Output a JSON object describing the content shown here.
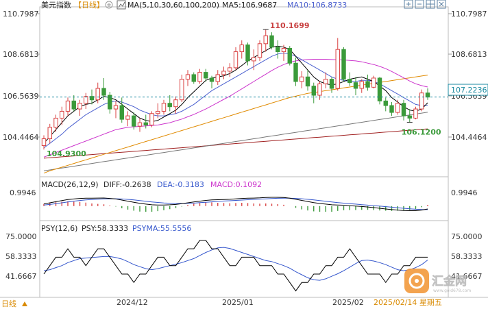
{
  "header": {
    "name": "美元指数",
    "period": "【日线】",
    "ma_label": "MA(5,10,30,60,100,200)",
    "ma5": "MA5:106.9687",
    "ma10": "MA10:106.8733"
  },
  "toolbar": {
    "icons": [
      "zoom-in-icon",
      "zoom-out-icon",
      "grid-icon",
      "close-icon"
    ]
  },
  "price_panel": {
    "y_ticks": [
      "110.7987",
      "108.6813",
      "106.5639",
      "104.4464"
    ],
    "current_price": "107.2236",
    "high_label": "110.1699",
    "low_label_left": "104.9300",
    "low_label_right": "106.1200"
  },
  "macd_panel": {
    "label": "MACD(26,12,9)",
    "diff": "DIFF:-0.2638",
    "dea": "DEA:-0.3183",
    "macd": "MACD:0.1092",
    "y_ticks": [
      "0.9946"
    ]
  },
  "psy_panel": {
    "label": "PSY(12,6)",
    "psy": "PSY:58.3333",
    "psyma": "PSYMA:55.5556",
    "y_ticks": [
      "75.0000",
      "58.3333",
      "41.6667"
    ]
  },
  "footer": {
    "period_button": "日线",
    "x_ticks": [
      "2024/12",
      "2025/01",
      "2025/02"
    ],
    "date": "2025/02/14 星期五"
  },
  "watermark": {
    "text": "汇金网",
    "sub": "www.gold678.com"
  },
  "colors": {
    "up": "#d94040",
    "down": "#3a9a3a",
    "ma5": "#000000",
    "ma10": "#4a5fcf",
    "ma30": "#cc33cc",
    "ma60": "#e08a00",
    "ma100": "#777777",
    "ma200": "#a02020",
    "current_line": "#1a8aa0"
  },
  "chart_data": {
    "type": "candlestick",
    "x_range_dates": [
      "2024-11-05",
      "2025-02-14"
    ],
    "ylim": [
      103.8,
      111.1
    ],
    "candles": [
      [
        105.1,
        105.55,
        104.93,
        105.4
      ],
      [
        105.4,
        106.05,
        105.2,
        105.9
      ],
      [
        105.9,
        106.45,
        105.7,
        106.3
      ],
      [
        106.3,
        106.8,
        106.0,
        106.6
      ],
      [
        106.6,
        107.2,
        106.4,
        107.05
      ],
      [
        107.05,
        107.3,
        106.6,
        106.7
      ],
      [
        106.7,
        107.1,
        106.4,
        106.95
      ],
      [
        106.95,
        107.4,
        106.7,
        107.25
      ],
      [
        107.25,
        107.55,
        106.9,
        107.1
      ],
      [
        107.1,
        107.85,
        106.95,
        107.6
      ],
      [
        107.6,
        108.05,
        107.1,
        107.3
      ],
      [
        107.3,
        107.45,
        106.5,
        106.7
      ],
      [
        106.7,
        107.05,
        106.3,
        106.85
      ],
      [
        106.85,
        107.2,
        106.1,
        106.25
      ],
      [
        106.25,
        106.6,
        105.95,
        106.4
      ],
      [
        106.4,
        106.55,
        105.8,
        105.95
      ],
      [
        105.95,
        106.3,
        105.7,
        106.1
      ],
      [
        106.1,
        106.45,
        105.85,
        106.0
      ],
      [
        106.0,
        106.6,
        105.9,
        106.5
      ],
      [
        106.5,
        106.95,
        106.3,
        106.6
      ],
      [
        106.6,
        107.1,
        106.45,
        106.95
      ],
      [
        106.95,
        107.3,
        106.6,
        106.8
      ],
      [
        106.8,
        107.25,
        106.5,
        107.1
      ],
      [
        107.1,
        108.2,
        107.0,
        108.0
      ],
      [
        108.0,
        108.4,
        107.7,
        108.2
      ],
      [
        108.2,
        108.3,
        107.8,
        107.9
      ],
      [
        107.9,
        108.45,
        107.8,
        108.3
      ],
      [
        108.3,
        108.45,
        107.9,
        108.05
      ],
      [
        108.05,
        108.15,
        107.6,
        107.9
      ],
      [
        107.9,
        108.4,
        107.75,
        108.2
      ],
      [
        108.2,
        108.55,
        108.0,
        108.35
      ],
      [
        108.35,
        108.7,
        108.1,
        108.5
      ],
      [
        108.5,
        109.4,
        108.4,
        109.2
      ],
      [
        109.2,
        109.7,
        108.9,
        109.5
      ],
      [
        109.5,
        109.6,
        108.6,
        108.8
      ],
      [
        108.8,
        109.3,
        108.4,
        108.95
      ],
      [
        108.95,
        109.7,
        108.8,
        109.55
      ],
      [
        109.55,
        110.17,
        109.2,
        109.9
      ],
      [
        109.9,
        110.05,
        109.3,
        109.4
      ],
      [
        109.4,
        109.7,
        108.9,
        109.2
      ],
      [
        109.2,
        109.5,
        108.8,
        109.35
      ],
      [
        109.35,
        109.45,
        108.6,
        108.7
      ],
      [
        108.7,
        108.95,
        107.7,
        107.9
      ],
      [
        107.9,
        108.35,
        107.6,
        108.1
      ],
      [
        108.1,
        108.4,
        107.5,
        107.7
      ],
      [
        107.7,
        107.85,
        106.95,
        107.3
      ],
      [
        107.3,
        107.9,
        107.1,
        107.8
      ],
      [
        107.8,
        108.3,
        107.6,
        108.0
      ],
      [
        108.0,
        108.1,
        107.4,
        107.6
      ],
      [
        107.6,
        109.8,
        107.5,
        109.3
      ],
      [
        109.3,
        109.4,
        107.9,
        108.0
      ],
      [
        108.0,
        108.3,
        107.7,
        107.85
      ],
      [
        107.85,
        108.1,
        107.3,
        107.6
      ],
      [
        107.6,
        108.0,
        107.4,
        107.9
      ],
      [
        107.9,
        108.2,
        107.5,
        107.65
      ],
      [
        107.65,
        108.15,
        107.6,
        108.05
      ],
      [
        108.05,
        108.1,
        106.9,
        107.05
      ],
      [
        107.05,
        107.2,
        106.6,
        106.85
      ],
      [
        106.85,
        107.0,
        106.4,
        106.55
      ],
      [
        106.55,
        107.1,
        106.45,
        106.95
      ],
      [
        106.95,
        107.1,
        106.2,
        106.4
      ],
      [
        106.4,
        106.7,
        106.12,
        106.3
      ],
      [
        106.3,
        106.8,
        106.25,
        106.7
      ],
      [
        106.7,
        107.55,
        106.6,
        107.4
      ],
      [
        107.4,
        107.6,
        107.1,
        107.22
      ]
    ],
    "ma5": [
      105.2,
      105.5,
      105.8,
      106.1,
      106.4,
      106.6,
      106.8,
      106.9,
      106.95,
      107.1,
      107.25,
      107.2,
      107.1,
      106.9,
      106.7,
      106.5,
      106.3,
      106.2,
      106.15,
      106.2,
      106.35,
      106.5,
      106.65,
      106.9,
      107.2,
      107.45,
      107.7,
      107.95,
      108.05,
      108.1,
      108.15,
      108.25,
      108.4,
      108.6,
      108.8,
      108.95,
      109.1,
      109.25,
      109.4,
      109.45,
      109.4,
      109.3,
      109.0,
      108.7,
      108.4,
      108.1,
      107.9,
      107.8,
      107.75,
      107.8,
      107.9,
      108.0,
      108.05,
      108.1,
      108.0,
      107.9,
      107.7,
      107.5,
      107.2,
      107.0,
      106.8,
      106.65,
      106.6,
      106.7,
      106.97
    ],
    "ma10": [
      105.0,
      105.2,
      105.4,
      105.6,
      105.85,
      106.05,
      106.25,
      106.45,
      106.6,
      106.75,
      106.9,
      107.0,
      107.05,
      107.0,
      106.9,
      106.8,
      106.65,
      106.55,
      106.45,
      106.4,
      106.4,
      106.45,
      106.5,
      106.6,
      106.75,
      106.9,
      107.1,
      107.3,
      107.5,
      107.65,
      107.8,
      107.95,
      108.1,
      108.25,
      108.4,
      108.55,
      108.7,
      108.85,
      109.0,
      109.1,
      109.15,
      109.1,
      109.0,
      108.85,
      108.7,
      108.55,
      108.4,
      108.25,
      108.1,
      108.0,
      107.95,
      107.9,
      107.9,
      107.95,
      107.95,
      107.9,
      107.8,
      107.65,
      107.5,
      107.35,
      107.2,
      107.05,
      106.9,
      106.85,
      106.87
    ],
    "ma30": [
      104.6,
      104.7,
      104.8,
      104.9,
      105.0,
      105.1,
      105.2,
      105.3,
      105.4,
      105.5,
      105.6,
      105.7,
      105.8,
      105.85,
      105.9,
      105.92,
      105.94,
      105.96,
      105.98,
      106.0,
      106.05,
      106.1,
      106.18,
      106.26,
      106.36,
      106.46,
      106.58,
      106.7,
      106.84,
      106.98,
      107.12,
      107.26,
      107.42,
      107.58,
      107.74,
      107.9,
      108.06,
      108.22,
      108.38,
      108.52,
      108.64,
      108.74,
      108.8,
      108.84,
      108.86,
      108.87,
      108.87,
      108.87,
      108.86,
      108.85,
      108.84,
      108.82,
      108.8,
      108.76,
      108.7,
      108.64,
      108.56,
      108.46,
      108.34,
      108.2,
      108.06,
      107.92,
      107.8,
      107.72,
      107.66
    ],
    "ma60": [
      103.9,
      104.0,
      104.08,
      104.16,
      104.24,
      104.32,
      104.4,
      104.48,
      104.56,
      104.64,
      104.72,
      104.8,
      104.88,
      104.96,
      105.04,
      105.12,
      105.2,
      105.28,
      105.36,
      105.44,
      105.52,
      105.6,
      105.68,
      105.76,
      105.84,
      105.92,
      106.0,
      106.08,
      106.16,
      106.24,
      106.32,
      106.4,
      106.48,
      106.56,
      106.64,
      106.72,
      106.8,
      106.88,
      106.96,
      107.04,
      107.12,
      107.2,
      107.26,
      107.32,
      107.38,
      107.42,
      107.46,
      107.5,
      107.54,
      107.58,
      107.62,
      107.66,
      107.7,
      107.74,
      107.78,
      107.82,
      107.86,
      107.9,
      107.94,
      107.98,
      108.02,
      108.06,
      108.1,
      108.14,
      108.18
    ],
    "ma100": [
      104.0,
      104.04,
      104.08,
      104.12,
      104.16,
      104.2,
      104.24,
      104.28,
      104.32,
      104.36,
      104.4,
      104.44,
      104.48,
      104.52,
      104.56,
      104.6,
      104.64,
      104.68,
      104.72,
      104.76,
      104.8,
      104.84,
      104.88,
      104.92,
      104.96,
      105.0,
      105.04,
      105.08,
      105.12,
      105.16,
      105.2,
      105.24,
      105.28,
      105.32,
      105.36,
      105.4,
      105.44,
      105.48,
      105.52,
      105.56,
      105.6,
      105.64,
      105.68,
      105.72,
      105.76,
      105.8,
      105.84,
      105.88,
      105.92,
      105.96,
      106.0,
      106.04,
      106.08,
      106.12,
      106.16,
      106.2,
      106.24,
      106.28,
      106.32,
      106.36,
      106.4,
      106.44,
      106.48,
      106.52,
      106.56
    ],
    "ma200": [
      104.55,
      104.57,
      104.59,
      104.61,
      104.63,
      104.65,
      104.67,
      104.69,
      104.71,
      104.73,
      104.75,
      104.77,
      104.79,
      104.81,
      104.83,
      104.85,
      104.87,
      104.89,
      104.91,
      104.93,
      104.95,
      104.97,
      104.99,
      105.01,
      105.03,
      105.05,
      105.07,
      105.09,
      105.11,
      105.13,
      105.15,
      105.17,
      105.19,
      105.21,
      105.23,
      105.25,
      105.27,
      105.29,
      105.31,
      105.33,
      105.35,
      105.37,
      105.39,
      105.41,
      105.43,
      105.45,
      105.47,
      105.49,
      105.51,
      105.53,
      105.55,
      105.57,
      105.59,
      105.61,
      105.63,
      105.65,
      105.67,
      105.69,
      105.71,
      105.73,
      105.75,
      105.77,
      105.79,
      105.81,
      105.83
    ],
    "macd": {
      "ylim": [
        -1.2,
        1.3
      ],
      "diff": [
        0.2,
        0.3,
        0.4,
        0.5,
        0.6,
        0.65,
        0.7,
        0.72,
        0.72,
        0.73,
        0.74,
        0.7,
        0.65,
        0.55,
        0.45,
        0.35,
        0.25,
        0.18,
        0.12,
        0.1,
        0.1,
        0.12,
        0.15,
        0.22,
        0.3,
        0.38,
        0.45,
        0.52,
        0.56,
        0.58,
        0.6,
        0.62,
        0.66,
        0.7,
        0.72,
        0.73,
        0.75,
        0.78,
        0.8,
        0.8,
        0.78,
        0.72,
        0.62,
        0.52,
        0.42,
        0.32,
        0.24,
        0.18,
        0.12,
        0.1,
        0.08,
        0.04,
        0.0,
        -0.04,
        -0.08,
        -0.14,
        -0.2,
        -0.26,
        -0.32,
        -0.36,
        -0.4,
        -0.42,
        -0.42,
        -0.36,
        -0.26
      ],
      "dea": [
        0.1,
        0.15,
        0.22,
        0.3,
        0.38,
        0.45,
        0.51,
        0.56,
        0.6,
        0.63,
        0.66,
        0.67,
        0.67,
        0.65,
        0.61,
        0.56,
        0.5,
        0.44,
        0.38,
        0.33,
        0.29,
        0.26,
        0.24,
        0.24,
        0.25,
        0.27,
        0.31,
        0.35,
        0.39,
        0.43,
        0.46,
        0.49,
        0.52,
        0.55,
        0.58,
        0.61,
        0.64,
        0.66,
        0.69,
        0.71,
        0.72,
        0.72,
        0.7,
        0.67,
        0.62,
        0.56,
        0.5,
        0.44,
        0.38,
        0.32,
        0.27,
        0.22,
        0.18,
        0.13,
        0.09,
        0.04,
        0.0,
        -0.05,
        -0.1,
        -0.15,
        -0.2,
        -0.25,
        -0.29,
        -0.31,
        -0.32
      ],
      "hist": [
        0.2,
        0.3,
        0.36,
        0.4,
        0.44,
        0.4,
        0.38,
        0.32,
        0.24,
        0.2,
        0.16,
        0.06,
        -0.04,
        -0.2,
        -0.32,
        -0.42,
        -0.5,
        -0.52,
        -0.52,
        -0.46,
        -0.38,
        -0.28,
        -0.18,
        -0.04,
        0.1,
        0.22,
        0.28,
        0.34,
        0.34,
        0.3,
        0.28,
        0.26,
        0.28,
        0.3,
        0.28,
        0.24,
        0.22,
        0.24,
        0.22,
        0.18,
        0.12,
        0.0,
        -0.16,
        -0.3,
        -0.4,
        -0.48,
        -0.52,
        -0.52,
        -0.52,
        -0.44,
        -0.38,
        -0.36,
        -0.36,
        -0.34,
        -0.34,
        -0.36,
        -0.4,
        -0.42,
        -0.44,
        -0.42,
        -0.4,
        -0.34,
        -0.26,
        -0.1,
        0.11
      ]
    },
    "psy": {
      "ylim": [
        20,
        85
      ],
      "psy": [
        41.67,
        50.0,
        58.33,
        58.33,
        66.67,
        58.33,
        58.33,
        50.0,
        58.33,
        66.67,
        66.67,
        58.33,
        50.0,
        41.67,
        41.67,
        33.33,
        41.67,
        41.67,
        50.0,
        58.33,
        58.33,
        50.0,
        50.0,
        58.33,
        66.67,
        66.67,
        75.0,
        75.0,
        66.67,
        66.67,
        58.33,
        50.0,
        50.0,
        58.33,
        58.33,
        58.33,
        50.0,
        50.0,
        50.0,
        41.67,
        41.67,
        33.33,
        25.0,
        33.33,
        33.33,
        41.67,
        41.67,
        50.0,
        50.0,
        58.33,
        58.33,
        66.67,
        58.33,
        50.0,
        41.67,
        41.67,
        41.67,
        33.33,
        41.67,
        41.67,
        50.0,
        50.0,
        58.33,
        58.33,
        58.33
      ],
      "psyma": [
        45.0,
        46.0,
        48.0,
        50.0,
        53.0,
        55.0,
        57.0,
        57.5,
        58.0,
        58.5,
        59.0,
        59.0,
        58.0,
        56.5,
        54.0,
        51.0,
        49.0,
        47.0,
        46.0,
        47.0,
        48.5,
        50.0,
        51.5,
        53.0,
        55.0,
        57.0,
        60.0,
        63.0,
        65.5,
        67.5,
        68.0,
        67.0,
        65.0,
        63.0,
        61.0,
        59.0,
        57.0,
        55.0,
        54.0,
        52.0,
        50.0,
        47.5,
        44.0,
        41.0,
        38.0,
        36.0,
        35.5,
        37.0,
        39.5,
        42.0,
        45.0,
        48.5,
        52.0,
        55.0,
        55.5,
        54.5,
        53.0,
        51.0,
        48.5,
        46.0,
        45.0,
        46.0,
        48.0,
        51.0,
        55.56
      ]
    }
  }
}
